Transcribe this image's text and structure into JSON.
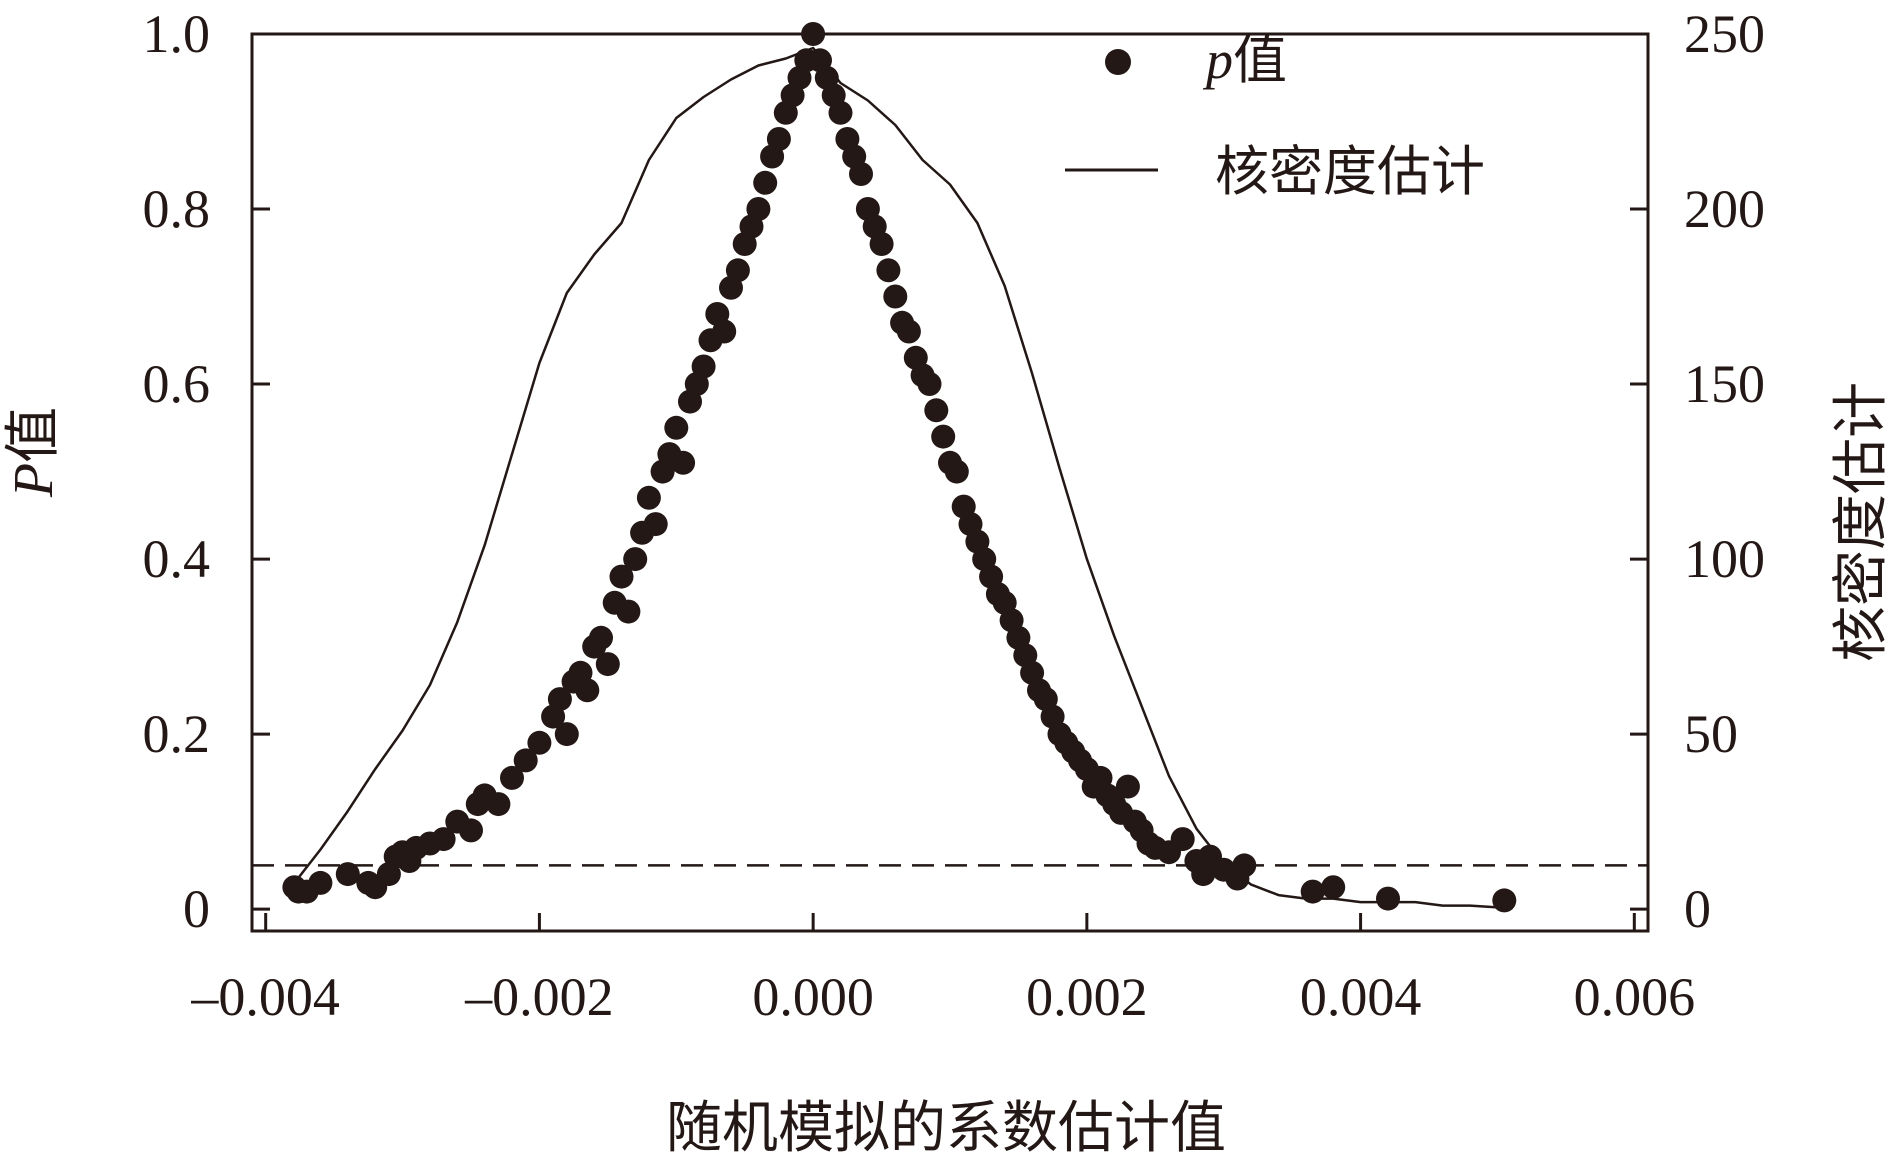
{
  "chart_data": {
    "type": "scatter",
    "title": "",
    "xlabel": "随机模拟的系数估计值",
    "ylabel_left_italic": "P",
    "ylabel_left_rest": "值",
    "ylabel_right": "核密度估计",
    "xlim": [
      -0.0041,
      0.0061
    ],
    "ylim_left": [
      -0.025,
      1.0
    ],
    "ylim_right": [
      -6.25,
      250
    ],
    "x_ticks": [
      -0.004,
      -0.002,
      0.0,
      0.002,
      0.004,
      0.006
    ],
    "x_tick_labels": [
      "–0.004",
      "–0.002",
      "0.000",
      "0.002",
      "0.004",
      "0.006"
    ],
    "y_left_ticks": [
      0,
      0.2,
      0.4,
      0.6,
      0.8,
      1.0
    ],
    "y_left_tick_labels": [
      "0",
      "0.2",
      "0.4",
      "0.6",
      "0.8",
      "1.0"
    ],
    "y_right_ticks": [
      0,
      50,
      100,
      150,
      200,
      250
    ],
    "y_right_tick_labels": [
      "0",
      "50",
      "100",
      "150",
      "200",
      "250"
    ],
    "reference_line": {
      "axis": "left",
      "y": 0.05,
      "style": "dashed"
    },
    "grid": false,
    "legend_position": "top-right",
    "legend": [
      {
        "marker": "dot",
        "label_italic": "p",
        "label_rest": "值"
      },
      {
        "marker": "line",
        "label": "核密度估计"
      }
    ],
    "series": [
      {
        "name": "p值",
        "kind": "points",
        "axis": "left",
        "points": [
          [
            -0.00379,
            0.025
          ],
          [
            -0.00376,
            0.02
          ],
          [
            -0.0037,
            0.02
          ],
          [
            -0.0036,
            0.03
          ],
          [
            -0.0034,
            0.04
          ],
          [
            -0.00325,
            0.03
          ],
          [
            -0.0032,
            0.025
          ],
          [
            -0.0031,
            0.04
          ],
          [
            -0.00305,
            0.06
          ],
          [
            -0.003,
            0.065
          ],
          [
            -0.00295,
            0.055
          ],
          [
            -0.0029,
            0.07
          ],
          [
            -0.0028,
            0.075
          ],
          [
            -0.0027,
            0.08
          ],
          [
            -0.0026,
            0.1
          ],
          [
            -0.0025,
            0.09
          ],
          [
            -0.00245,
            0.12
          ],
          [
            -0.0024,
            0.13
          ],
          [
            -0.0023,
            0.12
          ],
          [
            -0.0022,
            0.15
          ],
          [
            -0.0021,
            0.17
          ],
          [
            -0.002,
            0.19
          ],
          [
            -0.0019,
            0.22
          ],
          [
            -0.00185,
            0.24
          ],
          [
            -0.0018,
            0.2
          ],
          [
            -0.00175,
            0.26
          ],
          [
            -0.0017,
            0.27
          ],
          [
            -0.00165,
            0.25
          ],
          [
            -0.0016,
            0.3
          ],
          [
            -0.00155,
            0.31
          ],
          [
            -0.0015,
            0.28
          ],
          [
            -0.00145,
            0.35
          ],
          [
            -0.0014,
            0.38
          ],
          [
            -0.00135,
            0.34
          ],
          [
            -0.0013,
            0.4
          ],
          [
            -0.00125,
            0.43
          ],
          [
            -0.0012,
            0.47
          ],
          [
            -0.00115,
            0.44
          ],
          [
            -0.0011,
            0.5
          ],
          [
            -0.00105,
            0.52
          ],
          [
            -0.001,
            0.55
          ],
          [
            -0.00095,
            0.51
          ],
          [
            -0.0009,
            0.58
          ],
          [
            -0.00085,
            0.6
          ],
          [
            -0.0008,
            0.62
          ],
          [
            -0.00075,
            0.65
          ],
          [
            -0.0007,
            0.68
          ],
          [
            -0.00065,
            0.66
          ],
          [
            -0.0006,
            0.71
          ],
          [
            -0.00055,
            0.73
          ],
          [
            -0.0005,
            0.76
          ],
          [
            -0.00045,
            0.78
          ],
          [
            -0.0004,
            0.8
          ],
          [
            -0.00035,
            0.83
          ],
          [
            -0.0003,
            0.86
          ],
          [
            -0.00025,
            0.88
          ],
          [
            -0.0002,
            0.91
          ],
          [
            -0.00015,
            0.93
          ],
          [
            -0.0001,
            0.95
          ],
          [
            -5e-05,
            0.97
          ],
          [
            0.0,
            1.0
          ],
          [
            5e-05,
            0.97
          ],
          [
            0.0001,
            0.95
          ],
          [
            0.00015,
            0.93
          ],
          [
            0.0002,
            0.91
          ],
          [
            0.00025,
            0.88
          ],
          [
            0.0003,
            0.86
          ],
          [
            0.00035,
            0.84
          ],
          [
            0.0004,
            0.8
          ],
          [
            0.00045,
            0.78
          ],
          [
            0.0005,
            0.76
          ],
          [
            0.00055,
            0.73
          ],
          [
            0.0006,
            0.7
          ],
          [
            0.00065,
            0.67
          ],
          [
            0.0007,
            0.66
          ],
          [
            0.00075,
            0.63
          ],
          [
            0.0008,
            0.61
          ],
          [
            0.00085,
            0.6
          ],
          [
            0.0009,
            0.57
          ],
          [
            0.00095,
            0.54
          ],
          [
            0.001,
            0.51
          ],
          [
            0.00105,
            0.5
          ],
          [
            0.0011,
            0.46
          ],
          [
            0.00115,
            0.44
          ],
          [
            0.0012,
            0.42
          ],
          [
            0.00125,
            0.4
          ],
          [
            0.0013,
            0.38
          ],
          [
            0.00135,
            0.36
          ],
          [
            0.0014,
            0.35
          ],
          [
            0.00145,
            0.33
          ],
          [
            0.0015,
            0.31
          ],
          [
            0.00155,
            0.29
          ],
          [
            0.0016,
            0.27
          ],
          [
            0.00165,
            0.25
          ],
          [
            0.0017,
            0.24
          ],
          [
            0.00175,
            0.22
          ],
          [
            0.0018,
            0.2
          ],
          [
            0.00185,
            0.19
          ],
          [
            0.0019,
            0.18
          ],
          [
            0.00195,
            0.17
          ],
          [
            0.002,
            0.16
          ],
          [
            0.00205,
            0.14
          ],
          [
            0.0021,
            0.15
          ],
          [
            0.00215,
            0.13
          ],
          [
            0.0022,
            0.12
          ],
          [
            0.00225,
            0.11
          ],
          [
            0.0023,
            0.14
          ],
          [
            0.00235,
            0.1
          ],
          [
            0.0024,
            0.09
          ],
          [
            0.00245,
            0.075
          ],
          [
            0.0025,
            0.07
          ],
          [
            0.0026,
            0.065
          ],
          [
            0.0027,
            0.08
          ],
          [
            0.0028,
            0.055
          ],
          [
            0.00285,
            0.04
          ],
          [
            0.0029,
            0.06
          ],
          [
            0.003,
            0.045
          ],
          [
            0.0031,
            0.035
          ],
          [
            0.00315,
            0.05
          ],
          [
            0.00365,
            0.02
          ],
          [
            0.0038,
            0.025
          ],
          [
            0.0042,
            0.012
          ],
          [
            0.00505,
            0.01
          ]
        ]
      },
      {
        "name": "核密度估计",
        "kind": "line",
        "axis": "right",
        "points": [
          [
            -0.0038,
            7
          ],
          [
            -0.0036,
            17
          ],
          [
            -0.0034,
            28
          ],
          [
            -0.0032,
            40
          ],
          [
            -0.003,
            51
          ],
          [
            -0.0028,
            64
          ],
          [
            -0.0026,
            82
          ],
          [
            -0.0024,
            104
          ],
          [
            -0.0022,
            130
          ],
          [
            -0.002,
            156
          ],
          [
            -0.0018,
            176
          ],
          [
            -0.0016,
            187
          ],
          [
            -0.0014,
            196
          ],
          [
            -0.0012,
            214
          ],
          [
            -0.001,
            226
          ],
          [
            -0.0008,
            232
          ],
          [
            -0.0006,
            237
          ],
          [
            -0.0004,
            241
          ],
          [
            -0.0002,
            243
          ],
          [
            0.0,
            246
          ],
          [
            0.0002,
            236
          ],
          [
            0.0004,
            231
          ],
          [
            0.0006,
            224
          ],
          [
            0.0008,
            214
          ],
          [
            0.001,
            207
          ],
          [
            0.0012,
            196
          ],
          [
            0.0014,
            178
          ],
          [
            0.0016,
            153
          ],
          [
            0.0018,
            126
          ],
          [
            0.002,
            100
          ],
          [
            0.0022,
            78
          ],
          [
            0.0024,
            58
          ],
          [
            0.0026,
            38
          ],
          [
            0.0028,
            23
          ],
          [
            0.003,
            13
          ],
          [
            0.0032,
            7
          ],
          [
            0.0034,
            4
          ],
          [
            0.0036,
            3
          ],
          [
            0.0038,
            3
          ],
          [
            0.004,
            2
          ],
          [
            0.0042,
            2
          ],
          [
            0.0044,
            2
          ],
          [
            0.0046,
            1
          ],
          [
            0.0048,
            1
          ],
          [
            0.005,
            0.5
          ]
        ]
      }
    ]
  }
}
